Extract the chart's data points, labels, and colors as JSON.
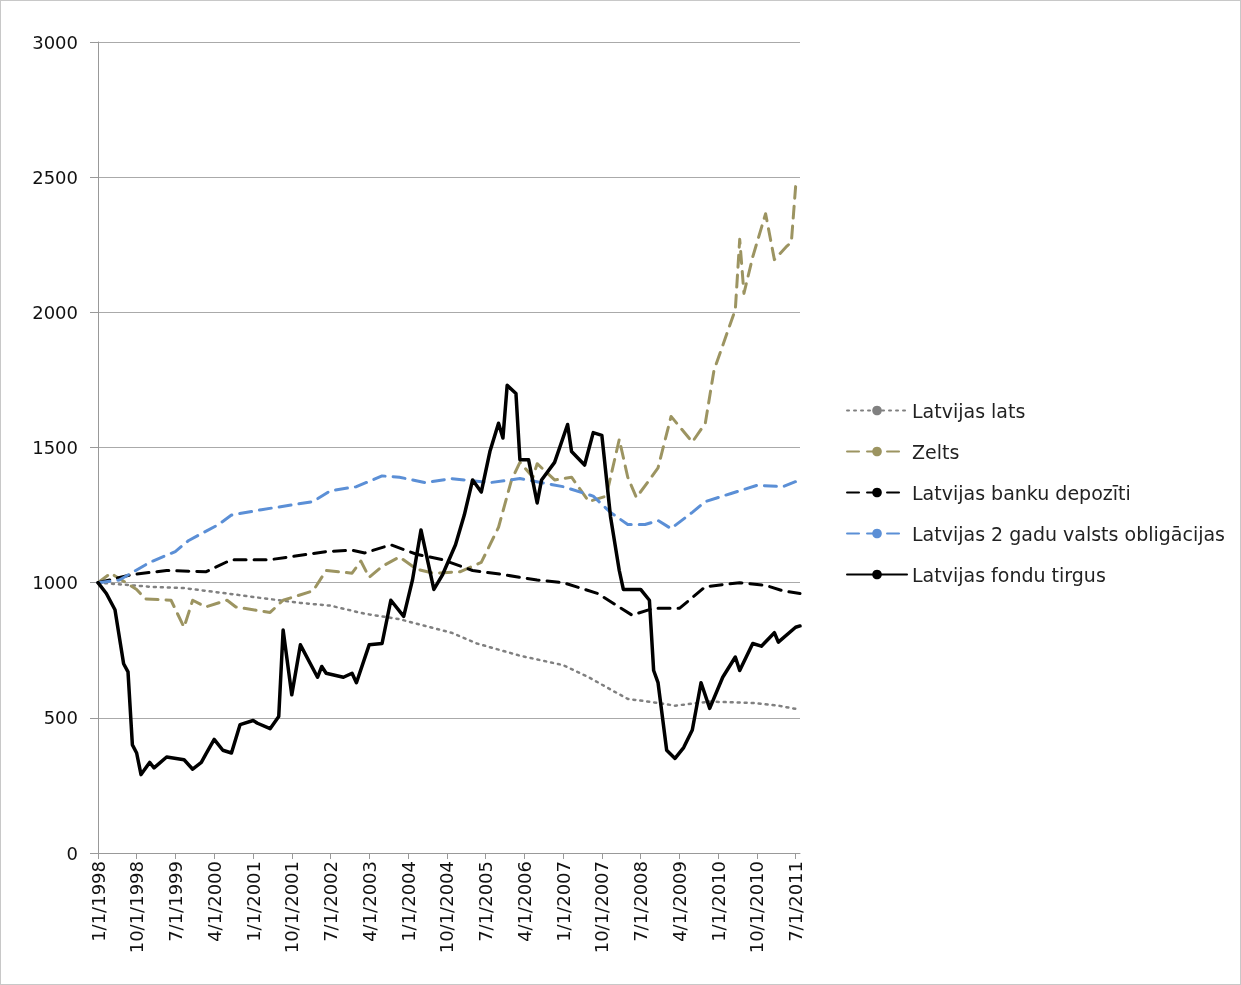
{
  "chart_data": {
    "type": "line",
    "grid": "y",
    "legend": "right",
    "marker": "none",
    "xlim": [
      "1998-01-01",
      "2011-08-01"
    ],
    "xticks": [
      {
        "value": "1998-01-01",
        "label": "1/1/1998"
      },
      {
        "value": "1998-10-01",
        "label": "10/1/1998"
      },
      {
        "value": "1999-07-01",
        "label": "7/1/1999"
      },
      {
        "value": "2000-04-01",
        "label": "4/1/2000"
      },
      {
        "value": "2001-01-01",
        "label": "1/1/2001"
      },
      {
        "value": "2001-10-01",
        "label": "10/1/2001"
      },
      {
        "value": "2002-07-01",
        "label": "7/1/2002"
      },
      {
        "value": "2003-04-01",
        "label": "4/1/2003"
      },
      {
        "value": "2004-01-01",
        "label": "1/1/2004"
      },
      {
        "value": "2004-10-01",
        "label": "10/1/2004"
      },
      {
        "value": "2005-07-01",
        "label": "7/1/2005"
      },
      {
        "value": "2006-04-01",
        "label": "4/1/2006"
      },
      {
        "value": "2007-01-01",
        "label": "1/1/2007"
      },
      {
        "value": "2007-10-01",
        "label": "10/1/2007"
      },
      {
        "value": "2008-07-01",
        "label": "7/1/2008"
      },
      {
        "value": "2009-04-01",
        "label": "4/1/2009"
      },
      {
        "value": "2010-01-01",
        "label": "1/1/2010"
      },
      {
        "value": "2010-10-01",
        "label": "10/1/2010"
      },
      {
        "value": "2011-07-01",
        "label": "7/1/2011"
      }
    ],
    "ylim": [
      0,
      3000
    ],
    "yticks": [
      0,
      500,
      1000,
      1500,
      2000,
      2500,
      3000
    ],
    "series": [
      {
        "name": "Latvijas lats",
        "color": "#808080",
        "line_style": "dotted",
        "x": [
          "1998-01",
          "1999-01",
          "1999-09",
          "2000-07",
          "2001-02",
          "2001-12",
          "2002-07",
          "2003-03",
          "2003-11",
          "2004-11",
          "2005-05",
          "2006-03",
          "2007-01",
          "2007-07",
          "2007-12",
          "2008-04",
          "2008-11",
          "2009-03",
          "2009-11",
          "2010-09",
          "2011-03",
          "2011-08"
        ],
        "values": [
          1000,
          985,
          980,
          960,
          945,
          925,
          915,
          885,
          865,
          815,
          775,
          730,
          695,
          650,
          605,
          570,
          555,
          545,
          560,
          555,
          545,
          530
        ]
      },
      {
        "name": "Zelts",
        "color": "#9c9461",
        "line_style": "dashed",
        "x": [
          "1998-01",
          "1998-04",
          "1998-10",
          "1998-12",
          "1999-06",
          "1999-09",
          "1999-11",
          "2000-02",
          "2000-07",
          "2000-09",
          "2001-05",
          "2001-08",
          "2002-03",
          "2002-06",
          "2002-12",
          "2003-02",
          "2003-04",
          "2003-07",
          "2003-11",
          "2004-03",
          "2004-07",
          "2005-01",
          "2005-06",
          "2005-10",
          "2006-01",
          "2006-03",
          "2006-06",
          "2006-07",
          "2006-11",
          "2007-03",
          "2007-07",
          "2007-11",
          "2008-02",
          "2008-04",
          "2008-06",
          "2008-09",
          "2008-11",
          "2009-02",
          "2009-07",
          "2009-10",
          "2009-12",
          "2010-05",
          "2010-06",
          "2010-07",
          "2010-09",
          "2010-12",
          "2011-02",
          "2011-05",
          "2011-06",
          "2011-07"
        ],
        "values": [
          1000,
          1035,
          975,
          940,
          935,
          835,
          935,
          910,
          935,
          910,
          890,
          935,
          970,
          1045,
          1035,
          1080,
          1020,
          1060,
          1095,
          1050,
          1035,
          1040,
          1075,
          1205,
          1380,
          1445,
          1390,
          1440,
          1380,
          1390,
          1300,
          1320,
          1530,
          1390,
          1315,
          1380,
          1425,
          1615,
          1520,
          1590,
          1785,
          2010,
          2270,
          2070,
          2205,
          2365,
          2195,
          2245,
          2260,
          2465
        ]
      },
      {
        "name": "Latvijas banku depozīti",
        "color": "#000000",
        "line_style": "dashed",
        "x": [
          "1998-01",
          "1998-09",
          "1999-05",
          "2000-02",
          "2000-08",
          "2001-05",
          "2002-06",
          "2002-12",
          "2003-03",
          "2003-09",
          "2004-03",
          "2004-09",
          "2005-04",
          "2005-11",
          "2006-07",
          "2007-01",
          "2007-09",
          "2008-05",
          "2008-10",
          "2009-04",
          "2009-10",
          "2010-06",
          "2010-12",
          "2011-04",
          "2011-08"
        ],
        "values": [
          1000,
          1030,
          1045,
          1040,
          1085,
          1085,
          1115,
          1120,
          1110,
          1140,
          1105,
          1085,
          1045,
          1030,
          1010,
          1000,
          960,
          880,
          905,
          905,
          985,
          1000,
          990,
          970,
          960
        ]
      },
      {
        "name": "Latvijas 2 gadu valsts obligācijas",
        "color": "#5b8fd6",
        "line_style": "dashed",
        "x": [
          "1998-01",
          "1998-06",
          "1999-01",
          "1999-07",
          "1999-10",
          "2000-05",
          "2000-08",
          "2001-03",
          "2002-03",
          "2002-07",
          "2003-01",
          "2003-07",
          "2003-11",
          "2004-05",
          "2004-11",
          "2005-08",
          "2006-03",
          "2007-01",
          "2007-08",
          "2007-12",
          "2008-04",
          "2008-08",
          "2008-11",
          "2009-02",
          "2009-07",
          "2009-10",
          "2010-04",
          "2010-10",
          "2011-04",
          "2011-08"
        ],
        "values": [
          1000,
          1010,
          1075,
          1115,
          1155,
          1215,
          1250,
          1270,
          1300,
          1340,
          1355,
          1395,
          1390,
          1370,
          1385,
          1370,
          1385,
          1355,
          1320,
          1260,
          1215,
          1215,
          1230,
          1200,
          1260,
          1300,
          1330,
          1360,
          1355,
          1380
        ]
      },
      {
        "name": "Latvijas fondu tirgus",
        "color": "#000000",
        "line_style": "solid",
        "x": [
          "1998-01",
          "1998-03",
          "1998-05",
          "1998-07",
          "1998-08",
          "1998-09",
          "1998-10",
          "1998-11",
          "1999-01",
          "1999-02",
          "1999-05",
          "1999-09",
          "1999-11",
          "2000-01",
          "2000-02",
          "2000-04",
          "2000-06",
          "2000-08",
          "2000-10",
          "2001-01",
          "2001-02",
          "2001-05",
          "2001-07",
          "2001-08",
          "2001-10",
          "2001-12",
          "2002-04",
          "2002-05",
          "2002-06",
          "2002-10",
          "2002-12",
          "2003-01",
          "2003-04",
          "2003-07",
          "2003-09",
          "2003-12",
          "2004-02",
          "2004-04",
          "2004-07",
          "2004-09",
          "2004-12",
          "2005-02",
          "2005-04",
          "2005-06",
          "2005-08",
          "2005-10",
          "2005-11",
          "2005-12",
          "2006-02",
          "2006-03",
          "2006-05",
          "2006-07",
          "2006-08",
          "2006-11",
          "2007-02",
          "2007-03",
          "2007-06",
          "2007-08",
          "2007-10",
          "2007-12",
          "2008-02",
          "2008-03",
          "2008-07",
          "2008-09",
          "2008-10",
          "2008-11",
          "2009-01",
          "2009-03",
          "2009-05",
          "2009-07",
          "2009-09",
          "2009-11",
          "2010-02",
          "2010-05",
          "2010-06",
          "2010-09",
          "2010-11",
          "2011-02",
          "2011-03",
          "2011-07",
          "2011-08"
        ],
        "values": [
          1000,
          960,
          900,
          700,
          670,
          400,
          370,
          290,
          335,
          315,
          355,
          345,
          310,
          335,
          365,
          420,
          380,
          370,
          475,
          490,
          480,
          460,
          505,
          825,
          585,
          770,
          650,
          690,
          665,
          650,
          665,
          630,
          770,
          775,
          935,
          875,
          1010,
          1195,
          975,
          1030,
          1140,
          1250,
          1380,
          1335,
          1485,
          1590,
          1535,
          1730,
          1700,
          1455,
          1455,
          1295,
          1380,
          1445,
          1585,
          1485,
          1435,
          1555,
          1545,
          1245,
          1045,
          975,
          975,
          935,
          675,
          630,
          380,
          350,
          390,
          455,
          630,
          535,
          650,
          725,
          675,
          775,
          765,
          815,
          780,
          835,
          840
        ]
      }
    ]
  }
}
